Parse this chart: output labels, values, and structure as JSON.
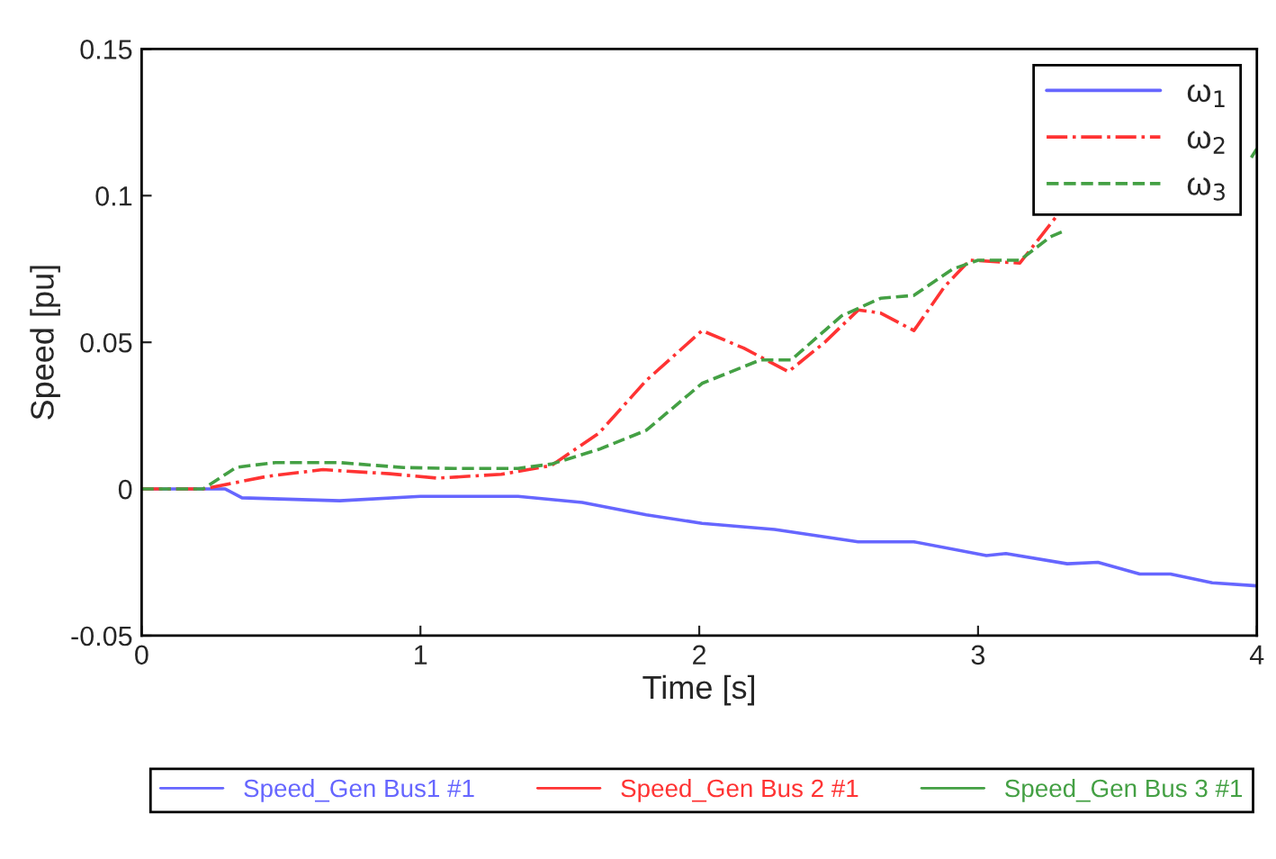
{
  "chart_data": {
    "type": "line",
    "xlabel": "Time [s]",
    "ylabel": "Speed [pu]",
    "xlim": [
      0,
      4
    ],
    "ylim": [
      -0.05,
      0.15
    ],
    "xticks": [
      0,
      1,
      2,
      3,
      4
    ],
    "yticks": [
      -0.05,
      0,
      0.05,
      0.1,
      0.15
    ],
    "grid": false,
    "legend": "top right",
    "marker": "none",
    "annotations": [
      "Speed_Gen Bus1 #1",
      "Speed_Gen Bus 2 #1",
      "Speed_Gen Bus 3 #1"
    ],
    "series": [
      {
        "name": "ω$_{1}$",
        "color": "#6666ff",
        "line_style": "solid",
        "x": [
          0,
          0.3,
          0.36,
          0.71,
          1.0,
          1.35,
          1.58,
          1.81,
          2.01,
          2.27,
          2.57,
          2.77,
          3.03,
          3.1,
          3.32,
          3.43,
          3.58,
          3.69,
          3.84,
          4.0
        ],
        "values": [
          0,
          0,
          -0.003,
          -0.004,
          -0.0025,
          -0.0025,
          -0.0046,
          -0.0088,
          -0.0117,
          -0.0138,
          -0.018,
          -0.018,
          -0.0227,
          -0.022,
          -0.0255,
          -0.025,
          -0.029,
          -0.029,
          -0.032,
          -0.033
        ]
      },
      {
        "name": "ω$_{2}$",
        "color": "#ff3333",
        "line_style": "dashdot",
        "x": [
          0,
          0.22,
          0.45,
          0.65,
          0.89,
          1.06,
          1.29,
          1.47,
          1.64,
          1.81,
          2.01,
          2.16,
          2.32,
          2.45,
          2.57,
          2.65,
          2.77,
          2.88,
          2.97,
          3.15,
          3.29
        ],
        "values": [
          0,
          0,
          0.0043,
          0.0066,
          0.0052,
          0.0037,
          0.005,
          0.008,
          0.019,
          0.037,
          0.054,
          0.048,
          0.04,
          0.05,
          0.061,
          0.06,
          0.054,
          0.069,
          0.078,
          0.077,
          0.094
        ]
      },
      {
        "name": "ω$_{3}$",
        "color": "#44a044",
        "line_style": "dashed",
        "x": [
          0,
          0.22,
          0.34,
          0.48,
          0.71,
          0.94,
          1.12,
          1.35,
          1.47,
          1.64,
          1.81,
          2.01,
          2.22,
          2.33,
          2.51,
          2.65,
          2.77,
          2.91,
          3.0,
          3.15,
          3.26,
          3.31,
          3.6,
          3.98,
          4.0
        ],
        "values": [
          0,
          0,
          0.0074,
          0.009,
          0.009,
          0.0073,
          0.007,
          0.007,
          0.0085,
          0.0135,
          0.02,
          0.036,
          0.044,
          0.044,
          0.059,
          0.065,
          0.066,
          0.075,
          0.078,
          0.078,
          0.086,
          0.088,
          null,
          0.113,
          0.116
        ]
      }
    ]
  }
}
